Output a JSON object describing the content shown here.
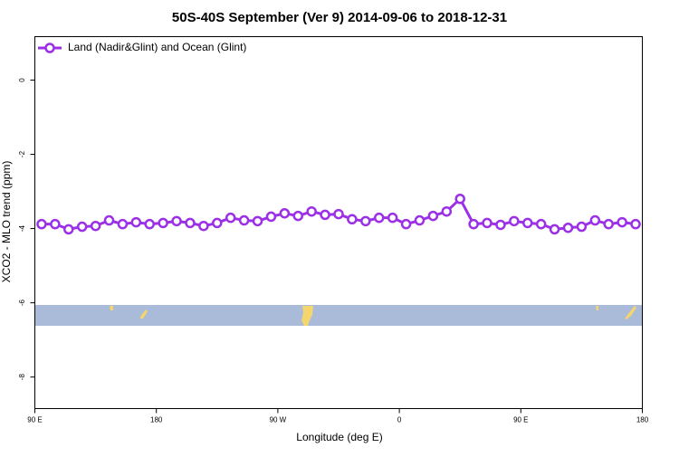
{
  "chart_data": {
    "type": "line",
    "title": "50S-40S September (Ver 9)   2014-09-06 to 2018-12-31",
    "x_label": "Longitude (deg E)",
    "y_label": "XCO2 - MLO trend (ppm)",
    "x": [
      95,
      105,
      115,
      125,
      135,
      145,
      155,
      165,
      175,
      185,
      195,
      205,
      215,
      225,
      235,
      245,
      255,
      265,
      275,
      285,
      295,
      305,
      315,
      325,
      335,
      345,
      355,
      365,
      375,
      385,
      395,
      405,
      415,
      425,
      435,
      445,
      455,
      465,
      475,
      485,
      495,
      505,
      515,
      525,
      535
    ],
    "series": [
      {
        "name": "Land (Nadir&Glint) and Ocean (Glint)",
        "color": "#9b30e6",
        "values": [
          -3.88,
          -3.88,
          -4.02,
          -3.95,
          -3.93,
          -3.78,
          -3.88,
          -3.83,
          -3.88,
          -3.85,
          -3.8,
          -3.85,
          -3.93,
          -3.85,
          -3.71,
          -3.78,
          -3.8,
          -3.68,
          -3.59,
          -3.66,
          -3.54,
          -3.63,
          -3.61,
          -3.75,
          -3.8,
          -3.71,
          -3.71,
          -3.88,
          -3.78,
          -3.66,
          -3.54,
          -3.2,
          -3.88,
          -3.85,
          -3.9,
          -3.8,
          -3.85,
          -3.88,
          -4.02,
          -3.98,
          -3.95,
          -3.78,
          -3.88,
          -3.83,
          -3.88
        ]
      }
    ],
    "xlim": [
      90,
      540
    ],
    "xticks": [
      {
        "value": 90,
        "label": "90 E"
      },
      180,
      {
        "value": 270,
        "label": "90 W"
      },
      {
        "value": 360,
        "label": "0"
      },
      {
        "value": 450,
        "label": "90 E"
      },
      {
        "value": 540,
        "label": "180"
      }
    ],
    "ylim": [
      -8.85,
      1.17
    ],
    "yticks": [
      0,
      -2,
      -4,
      -6,
      -8
    ],
    "legend": "top-left"
  }
}
